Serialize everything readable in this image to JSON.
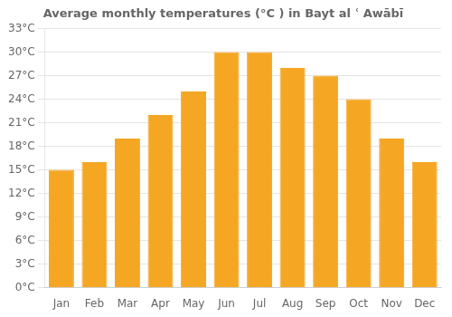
{
  "chart_data": {
    "type": "bar",
    "title": "Average monthly temperatures (°C ) in Bayt al ʿ Awābī",
    "categories": [
      "Jan",
      "Feb",
      "Mar",
      "Apr",
      "May",
      "Jun",
      "Jul",
      "Aug",
      "Sep",
      "Oct",
      "Nov",
      "Dec"
    ],
    "values": [
      15,
      16,
      19,
      22,
      25,
      30,
      30,
      28,
      27,
      24,
      19,
      16
    ],
    "color": "#F5A623",
    "ylim": [
      0,
      33
    ],
    "yticks": [
      {
        "value": 0,
        "label": "0°C"
      },
      {
        "value": 3,
        "label": "3°C"
      },
      {
        "value": 6,
        "label": "6°C"
      },
      {
        "value": 9,
        "label": "9°C"
      },
      {
        "value": 12,
        "label": "12°C"
      },
      {
        "value": 15,
        "label": "15°C"
      },
      {
        "value": 18,
        "label": "18°C"
      },
      {
        "value": 21,
        "label": "21°C"
      },
      {
        "value": 24,
        "label": "24°C"
      },
      {
        "value": 27,
        "label": "27°C"
      },
      {
        "value": 30,
        "label": "30°C"
      },
      {
        "value": 33,
        "label": "33°C"
      }
    ],
    "grid": "y"
  }
}
